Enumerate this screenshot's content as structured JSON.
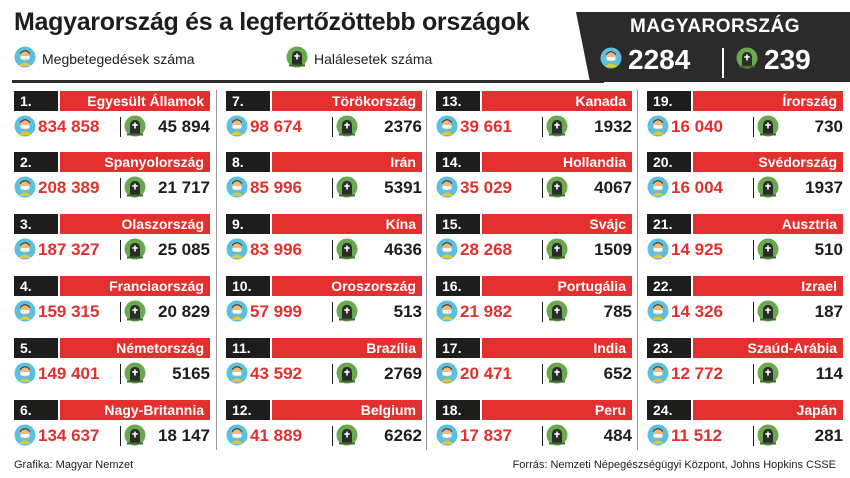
{
  "title": "Magyarország és a legfertőzöttebb országok",
  "legend": {
    "cases_label": "Megbetegedések száma",
    "deaths_label": "Halálesetek száma"
  },
  "icons": {
    "cases": "person-mask-icon",
    "deaths": "gravestone-icon"
  },
  "colors": {
    "accent_red": "#e3302e",
    "dark": "#1d1d1b",
    "panel": "#2b2b2b",
    "mask": "#5bc0de",
    "face": "#f2b77d",
    "globe_green": "#6aa84f"
  },
  "hungary": {
    "label": "MAGYARORSZÁG",
    "cases": "2284",
    "deaths": "239"
  },
  "countries": [
    {
      "rank": "1.",
      "name": "Egyesült Államok",
      "cases": "834 858",
      "deaths": "45 894"
    },
    {
      "rank": "2.",
      "name": "Spanyolország",
      "cases": "208 389",
      "deaths": "21 717"
    },
    {
      "rank": "3.",
      "name": "Olaszország",
      "cases": "187 327",
      "deaths": "25 085"
    },
    {
      "rank": "4.",
      "name": "Franciaország",
      "cases": "159 315",
      "deaths": "20 829"
    },
    {
      "rank": "5.",
      "name": "Németország",
      "cases": "149 401",
      "deaths": "5165"
    },
    {
      "rank": "6.",
      "name": "Nagy-Britannia",
      "cases": "134 637",
      "deaths": "18 147"
    },
    {
      "rank": "7.",
      "name": "Törökország",
      "cases": "98 674",
      "deaths": "2376"
    },
    {
      "rank": "8.",
      "name": "Irán",
      "cases": "85 996",
      "deaths": "5391"
    },
    {
      "rank": "9.",
      "name": "Kína",
      "cases": "83 996",
      "deaths": "4636"
    },
    {
      "rank": "10.",
      "name": "Oroszország",
      "cases": "57 999",
      "deaths": "513"
    },
    {
      "rank": "11.",
      "name": "Brazília",
      "cases": "43 592",
      "deaths": "2769"
    },
    {
      "rank": "12.",
      "name": "Belgium",
      "cases": "41 889",
      "deaths": "6262"
    },
    {
      "rank": "13.",
      "name": "Kanada",
      "cases": "39 661",
      "deaths": "1932"
    },
    {
      "rank": "14.",
      "name": "Hollandia",
      "cases": "35 029",
      "deaths": "4067"
    },
    {
      "rank": "15.",
      "name": "Svájc",
      "cases": "28 268",
      "deaths": "1509"
    },
    {
      "rank": "16.",
      "name": "Portugália",
      "cases": "21 982",
      "deaths": "785"
    },
    {
      "rank": "17.",
      "name": "India",
      "cases": "20 471",
      "deaths": "652"
    },
    {
      "rank": "18.",
      "name": "Peru",
      "cases": "17 837",
      "deaths": "484"
    },
    {
      "rank": "19.",
      "name": "Írország",
      "cases": "16 040",
      "deaths": "730"
    },
    {
      "rank": "20.",
      "name": "Svédország",
      "cases": "16 004",
      "deaths": "1937"
    },
    {
      "rank": "21.",
      "name": "Ausztria",
      "cases": "14 925",
      "deaths": "510"
    },
    {
      "rank": "22.",
      "name": "Izrael",
      "cases": "14 326",
      "deaths": "187"
    },
    {
      "rank": "23.",
      "name": "Szaúd-Arábia",
      "cases": "12 772",
      "deaths": "114"
    },
    {
      "rank": "24.",
      "name": "Japán",
      "cases": "11 512",
      "deaths": "281"
    }
  ],
  "footer": {
    "left": "Grafika: Magyar Nemzet",
    "right": "Forrás: Nemzeti Népegészségügyi Központ, Johns Hopkins CSSE"
  }
}
